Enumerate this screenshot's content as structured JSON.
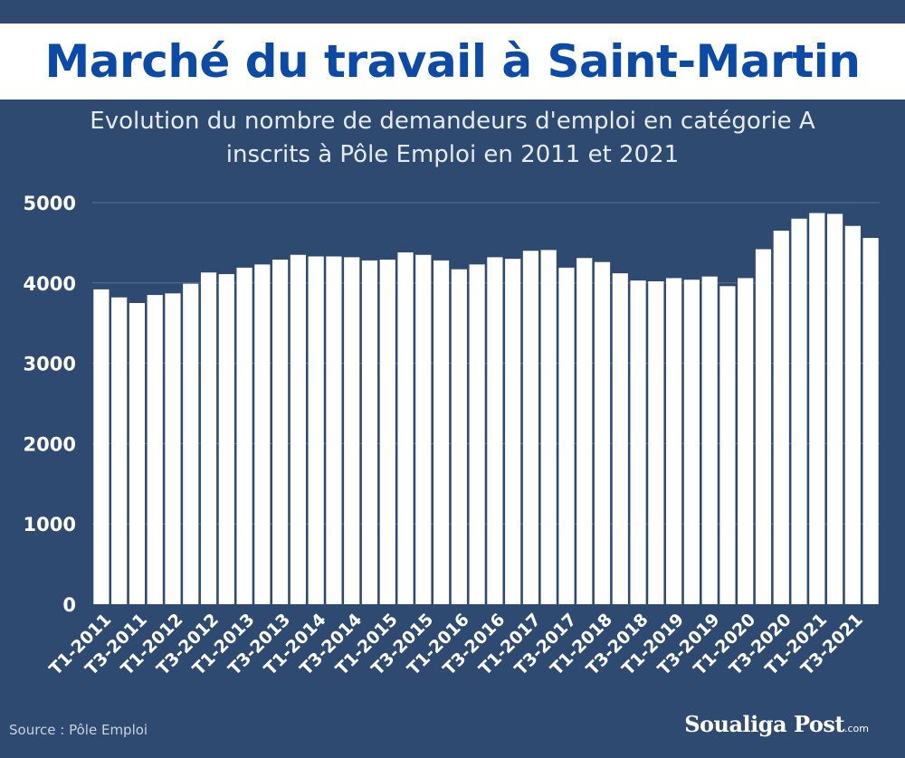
{
  "header": {
    "title": "Marché du travail à Saint-Martin",
    "subtitle_line1": "Evolution du nombre de demandeurs d'emploi en catégorie A",
    "subtitle_line2": "inscrits à Pôle Emploi en 2011 et 2021"
  },
  "footer": {
    "source": "Source : Pôle Emploi",
    "brand": "Soualiga Post",
    "brand_suffix": ".com"
  },
  "colors": {
    "background": "#2e4a70",
    "bars": "#ffffff",
    "title": "#0b4aa6"
  },
  "chart_data": {
    "type": "bar",
    "title": "",
    "xlabel": "",
    "ylabel": "",
    "ylim": [
      0,
      5000
    ],
    "yticks": [
      0,
      1000,
      2000,
      3000,
      4000,
      5000
    ],
    "grid": true,
    "categories": [
      "T1-2011",
      "T2-2011",
      "T3-2011",
      "T4-2011",
      "T1-2012",
      "T2-2012",
      "T3-2012",
      "T4-2012",
      "T1-2013",
      "T2-2013",
      "T3-2013",
      "T4-2013",
      "T1-2014",
      "T2-2014",
      "T3-2014",
      "T4-2014",
      "T1-2015",
      "T2-2015",
      "T3-2015",
      "T4-2015",
      "T1-2016",
      "T2-2016",
      "T3-2016",
      "T4-2016",
      "T1-2017",
      "T2-2017",
      "T3-2017",
      "T4-2017",
      "T1-2018",
      "T2-2018",
      "T3-2018",
      "T4-2018",
      "T1-2019",
      "T2-2019",
      "T3-2019",
      "T4-2019",
      "T1-2020",
      "T2-2020",
      "T3-2020",
      "T4-2020",
      "T1-2021",
      "T2-2021",
      "T3-2021",
      "T4-2021"
    ],
    "tick_labels_shown": [
      "T1-2011",
      "T3-2011",
      "T1-2012",
      "T3-2012",
      "T1-2013",
      "T3-2013",
      "T1-2014",
      "T3-2014",
      "T1-2015",
      "T3-2015",
      "T1-2016",
      "T3-2016",
      "T1-2017",
      "T3-2017",
      "T1-2018",
      "T3-2018",
      "T1-2019",
      "T3-2019",
      "T1-2020",
      "T3-2020",
      "T1-2021",
      "T3-2021"
    ],
    "values": [
      3920,
      3820,
      3750,
      3850,
      3870,
      3990,
      4130,
      4110,
      4190,
      4230,
      4290,
      4350,
      4330,
      4330,
      4320,
      4280,
      4290,
      4380,
      4350,
      4280,
      4170,
      4230,
      4320,
      4300,
      4400,
      4410,
      4190,
      4310,
      4260,
      4120,
      4030,
      4020,
      4060,
      4040,
      4080,
      3960,
      4060,
      4420,
      4650,
      4800,
      4870,
      4860,
      4710,
      4560
    ]
  }
}
